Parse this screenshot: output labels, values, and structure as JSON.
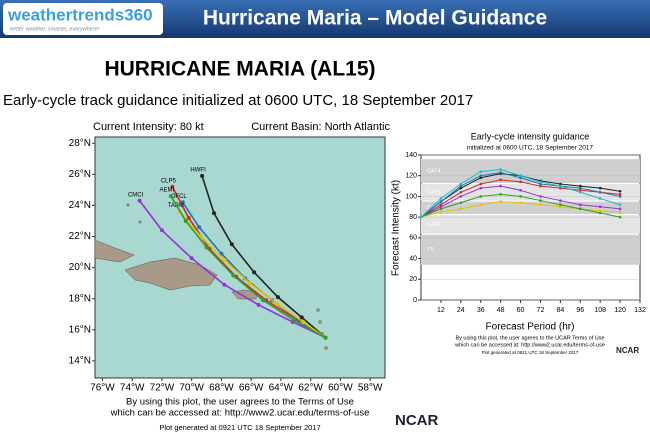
{
  "header": {
    "logo": "weathertrends360",
    "tagline": "better weather, smarter, everywhere!",
    "title": "Hurricane Maria – Model Guidance"
  },
  "heading": "HURRICANE MARIA (AL15)",
  "subtitle": "Early-cycle track guidance initialized at 0600 UTC, 18 September 2017",
  "chart_data": [
    {
      "type": "line",
      "current_intensity": "Current Intensity: 80 kt",
      "current_basin": "Current Basin: North Atlantic",
      "xlim": [
        -76.5,
        -57
      ],
      "ylim": [
        12.9,
        28.4
      ],
      "xticks": [
        {
          "value": -76,
          "label": "76°W"
        },
        {
          "value": -74,
          "label": "74°W"
        },
        {
          "value": -72,
          "label": "72°W"
        },
        {
          "value": -70,
          "label": "70°W"
        },
        {
          "value": -68,
          "label": "68°W"
        },
        {
          "value": -66,
          "label": "66°W"
        },
        {
          "value": -64,
          "label": "64°W"
        },
        {
          "value": -62,
          "label": "62°W"
        },
        {
          "value": -60,
          "label": "60°W"
        },
        {
          "value": -58,
          "label": "58°W"
        }
      ],
      "yticks": [
        {
          "value": 14,
          "label": "14°N"
        },
        {
          "value": 16,
          "label": "16°N"
        },
        {
          "value": 18,
          "label": "18°N"
        },
        {
          "value": 20,
          "label": "20°N"
        },
        {
          "value": 22,
          "label": "22°N"
        },
        {
          "value": 24,
          "label": "24°N"
        },
        {
          "value": 26,
          "label": "26°N"
        },
        {
          "value": 28,
          "label": "28°N"
        }
      ],
      "grid": false,
      "series": [
        {
          "name": "HWFI",
          "color": "#222222",
          "x": [
            -61.0,
            -62.6,
            -64.2,
            -65.8,
            -67.3,
            -68.5,
            -69.3
          ],
          "values": [
            15.5,
            16.8,
            18.1,
            19.7,
            21.5,
            23.5,
            25.9
          ]
        },
        {
          "name": "CLP5",
          "color": "#d62728",
          "x": [
            -61.0,
            -63.0,
            -65.0,
            -67.0,
            -68.8,
            -70.2,
            -71.3
          ],
          "values": [
            15.5,
            16.7,
            17.9,
            19.4,
            21.2,
            23.2,
            25.2
          ]
        },
        {
          "name": "CMCI",
          "color": "#9b30d9",
          "x": [
            -61.0,
            -63.2,
            -65.5,
            -67.8,
            -70.0,
            -72.0,
            -73.5
          ],
          "values": [
            15.5,
            16.5,
            17.6,
            18.9,
            20.6,
            22.4,
            24.3
          ]
        },
        {
          "name": "OFCL",
          "color": "#1f77b4",
          "x": [
            -61.0,
            -62.8,
            -64.6,
            -66.4,
            -68.0,
            -69.5,
            -70.6
          ],
          "values": [
            15.5,
            16.6,
            17.9,
            19.3,
            20.9,
            22.6,
            24.2
          ]
        },
        {
          "name": "TABM",
          "color": "#e8c000",
          "x": [
            -61.0,
            -62.5,
            -64.3,
            -66.1,
            -67.8,
            -69.4,
            -70.8
          ],
          "values": [
            15.5,
            16.5,
            17.7,
            19.0,
            20.5,
            22.0,
            23.6
          ]
        },
        {
          "name": "AEMI",
          "color": "#2ca02c",
          "x": [
            -61.0,
            -63.1,
            -65.2,
            -67.2,
            -69.0,
            -70.4,
            -71.4
          ],
          "values": [
            15.5,
            16.6,
            17.9,
            19.5,
            21.3,
            23.0,
            24.6
          ]
        }
      ],
      "notes": [
        "By using this plot, the user agrees to the Terms of Use",
        "which can be accessed at: http://www2.ucar.edu/terms-of-use",
        "Plot generated at 0921 UTC   18 September 2017"
      ],
      "credit": "NCAR"
    },
    {
      "type": "line",
      "title": "Early-cycle intensity guidance",
      "subtitle": "initialized at 0600 UTC, 18 September 2017",
      "xlabel": "Forecast Period (hr)",
      "ylabel": "Forecast Intensity (kt)",
      "xlim": [
        0,
        132
      ],
      "ylim": [
        0,
        140
      ],
      "xticks": [
        12,
        24,
        36,
        48,
        60,
        72,
        84,
        96,
        108,
        120,
        132
      ],
      "yticks": [
        0,
        20,
        40,
        60,
        80,
        100,
        120,
        140
      ],
      "grid": true,
      "bands": [
        {
          "label": "CAT4",
          "range": [
            113,
            136
          ]
        },
        {
          "label": "CAT3",
          "range": [
            96,
            112
          ]
        },
        {
          "label": "CAT2",
          "range": [
            83,
            95
          ]
        },
        {
          "label": "CAT1",
          "range": [
            64,
            82
          ]
        },
        {
          "label": "TS",
          "range": [
            34,
            63
          ]
        }
      ],
      "x": [
        0,
        12,
        24,
        36,
        48,
        60,
        72,
        84,
        96,
        108,
        120
      ],
      "series": [
        {
          "color": "#222222",
          "values": [
            80,
            95,
            108,
            118,
            122,
            120,
            115,
            112,
            110,
            108,
            105
          ]
        },
        {
          "color": "#d62728",
          "values": [
            80,
            92,
            104,
            112,
            116,
            114,
            110,
            108,
            106,
            104,
            102
          ]
        },
        {
          "color": "#9b30d9",
          "values": [
            80,
            90,
            100,
            108,
            110,
            106,
            100,
            96,
            92,
            90,
            88
          ]
        },
        {
          "color": "#1f77b4",
          "values": [
            80,
            95,
            110,
            120,
            123,
            118,
            112,
            110,
            108,
            104,
            100
          ]
        },
        {
          "color": "#e8c000",
          "values": [
            80,
            85,
            88,
            92,
            95,
            94,
            92,
            90,
            88,
            86,
            85
          ]
        },
        {
          "color": "#2ca02c",
          "values": [
            80,
            88,
            94,
            100,
            102,
            100,
            96,
            92,
            88,
            84,
            80
          ]
        },
        {
          "color": "#17becf",
          "values": [
            80,
            98,
            112,
            124,
            126,
            120,
            114,
            110,
            104,
            98,
            92
          ]
        }
      ],
      "notes": [
        "By using this plot, the user agrees to the UCAR Terms of Use",
        "which can be accessed at: http://www2.ucar.edu/terms-of-use",
        "Plot generated at 0921 UTC   18 September 2017"
      ],
      "credit": "NCAR"
    }
  ]
}
